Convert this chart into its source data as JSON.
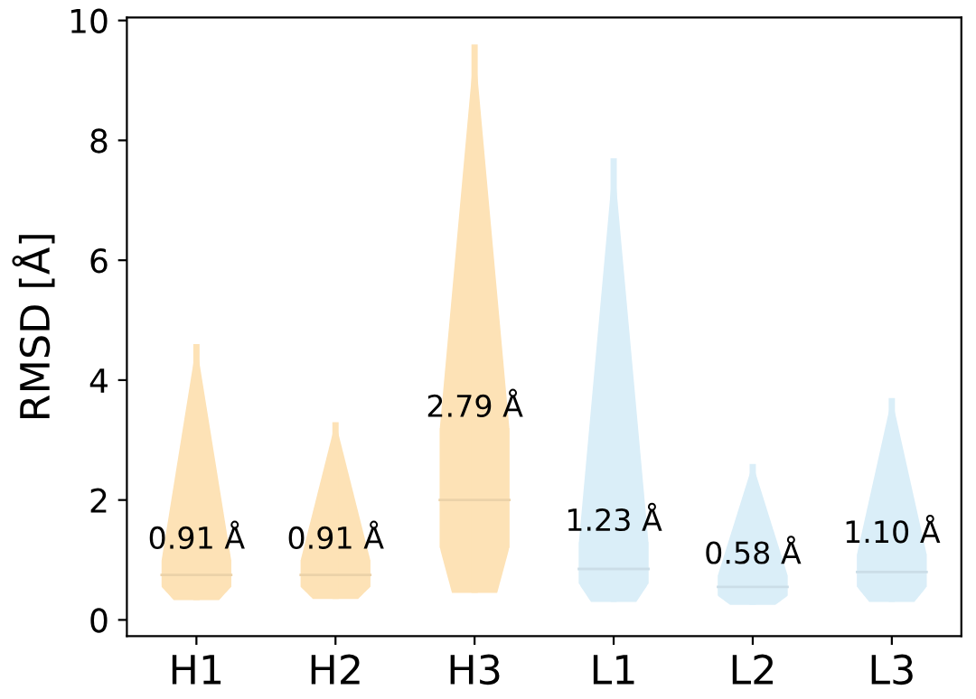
{
  "chart_data": {
    "type": "box",
    "ylabel": "RMSD [Å]",
    "categories": [
      "H1",
      "H2",
      "H3",
      "L1",
      "L2",
      "L3"
    ],
    "colors": [
      "#fde2b6",
      "#fde2b6",
      "#fde2b6",
      "#daeef8",
      "#daeef8",
      "#daeef8"
    ],
    "boxes": [
      {
        "low": 0.33,
        "q1": 0.55,
        "median": 0.75,
        "q3": 1.0,
        "high": 4.6
      },
      {
        "low": 0.35,
        "q1": 0.55,
        "median": 0.75,
        "q3": 1.0,
        "high": 3.3
      },
      {
        "low": 0.45,
        "q1": 1.2,
        "median": 2.0,
        "q3": 3.2,
        "high": 9.6
      },
      {
        "low": 0.3,
        "q1": 0.6,
        "median": 0.85,
        "q3": 1.3,
        "high": 7.7
      },
      {
        "low": 0.25,
        "q1": 0.4,
        "median": 0.55,
        "q3": 0.75,
        "high": 2.6
      },
      {
        "low": 0.3,
        "q1": 0.55,
        "median": 0.8,
        "q3": 1.1,
        "high": 3.7
      }
    ],
    "annotations": [
      "0.91 Å",
      "0.91 Å",
      "2.79 Å",
      "1.23 Å",
      "0.58 Å",
      "1.10 Å"
    ],
    "ylim": [
      -0.27,
      10.05
    ],
    "yticks": [
      0,
      2,
      4,
      6,
      8,
      10
    ],
    "grid": false
  }
}
